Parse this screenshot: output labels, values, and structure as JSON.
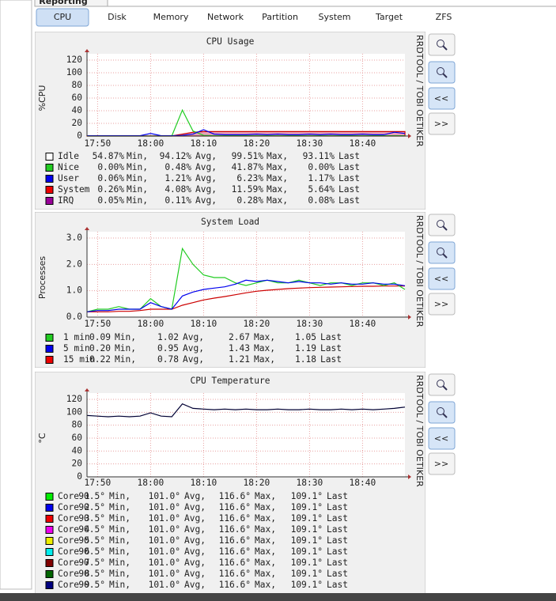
{
  "header_tab": "Reporting",
  "tabs": [
    "CPU",
    "Disk",
    "Memory",
    "Network",
    "Partition",
    "System",
    "Target",
    "ZFS"
  ],
  "selected_tab": 0,
  "graph_buttons": {
    "back": "<<",
    "forward": ">>"
  },
  "side_text": "RRDTOOL / TOBI OETIKER",
  "stat_words": [
    "Min,",
    "Avg,",
    "Max,",
    "Last"
  ],
  "x": [
    1068,
    1070,
    1072,
    1074,
    1076,
    1078,
    1080,
    1082,
    1084,
    1086,
    1088,
    1090,
    1092,
    1094,
    1096,
    1098,
    1100,
    1102,
    1104,
    1106,
    1108,
    1110,
    1112,
    1114,
    1116,
    1118,
    1120,
    1122,
    1124,
    1126,
    1128
  ],
  "xlim": [
    1068,
    1128
  ],
  "xticks": [
    {
      "value": 1070,
      "label": "17:50"
    },
    {
      "value": 1080,
      "label": "18:00"
    },
    {
      "value": 1090,
      "label": "18:10"
    },
    {
      "value": 1100,
      "label": "18:20"
    },
    {
      "value": 1110,
      "label": "18:30"
    },
    {
      "value": 1120,
      "label": "18:40"
    }
  ],
  "graphs": [
    {
      "title": "CPU Usage",
      "ylabel": "%CPU",
      "ylim": [
        0,
        120
      ],
      "yticks": [
        0,
        20,
        40,
        60,
        80,
        100,
        120
      ],
      "series": [
        {
          "color": "#e8a0b8",
          "fill": true,
          "line": "#cc0000",
          "values": [
            0.3,
            0.3,
            0.3,
            0.3,
            0.3,
            0.3,
            0.3,
            0.3,
            0.3,
            3,
            6,
            7,
            7,
            7,
            7,
            7,
            7,
            7,
            7,
            7,
            7,
            7,
            7,
            7,
            7,
            7,
            7,
            7,
            7,
            7,
            7
          ]
        },
        {
          "color": "#22cc22",
          "values": [
            0,
            0,
            0,
            0,
            0,
            0,
            0,
            0,
            0,
            41,
            8,
            1,
            0.5,
            0.5,
            0.5,
            0.5,
            0.5,
            0.5,
            0.5,
            0.5,
            0.5,
            0.5,
            0.5,
            0.5,
            0.5,
            0.5,
            0.5,
            0.5,
            0.5,
            0.5,
            0.5
          ]
        },
        {
          "color": "#0000ee",
          "values": [
            0.5,
            0.5,
            0.5,
            0.5,
            0.5,
            0.5,
            4,
            0.5,
            0.5,
            1,
            3,
            10,
            3,
            2,
            2,
            2,
            3,
            2,
            3,
            2,
            2,
            3,
            2,
            3,
            2,
            2,
            3,
            2,
            2,
            6,
            4
          ]
        }
      ],
      "legend": [
        {
          "name": "Idle",
          "color": "#ffffff",
          "min": "54.87%",
          "avg": "94.12%",
          "max": "99.51%",
          "last": "93.11%"
        },
        {
          "name": "Nice",
          "color": "#22cc22",
          "min": "0.00%",
          "avg": "0.48%",
          "max": "41.87%",
          "last": "0.00%"
        },
        {
          "name": "User",
          "color": "#0000ee",
          "min": "0.06%",
          "avg": "1.21%",
          "max": "6.23%",
          "last": "1.17%"
        },
        {
          "name": "System",
          "color": "#ee0000",
          "min": "0.26%",
          "avg": "4.08%",
          "max": "11.59%",
          "last": "5.64%"
        },
        {
          "name": "IRQ",
          "color": "#990099",
          "min": "0.05%",
          "avg": "0.11%",
          "max": "0.28%",
          "last": "0.08%"
        }
      ]
    },
    {
      "title": "System Load",
      "ylabel": "Processes",
      "ylim": [
        0,
        3
      ],
      "yticks": [
        {
          "value": 0,
          "label": "0.0"
        },
        {
          "value": 1,
          "label": "1.0"
        },
        {
          "value": 2,
          "label": "2.0"
        },
        {
          "value": 3,
          "label": "3.0"
        }
      ],
      "series": [
        {
          "color": "#cc0000",
          "values": [
            0.2,
            0.2,
            0.2,
            0.22,
            0.22,
            0.25,
            0.3,
            0.3,
            0.3,
            0.45,
            0.55,
            0.65,
            0.72,
            0.78,
            0.85,
            0.92,
            0.98,
            1.02,
            1.05,
            1.08,
            1.1,
            1.12,
            1.13,
            1.14,
            1.15,
            1.16,
            1.17,
            1.17,
            1.18,
            1.18,
            1.18
          ]
        },
        {
          "color": "#22cc22",
          "values": [
            0.2,
            0.3,
            0.3,
            0.4,
            0.3,
            0.3,
            0.7,
            0.4,
            0.3,
            2.6,
            2.0,
            1.6,
            1.5,
            1.5,
            1.3,
            1.2,
            1.3,
            1.4,
            1.3,
            1.3,
            1.4,
            1.3,
            1.2,
            1.3,
            1.3,
            1.2,
            1.3,
            1.3,
            1.2,
            1.3,
            1.05
          ]
        },
        {
          "color": "#0000ee",
          "values": [
            0.2,
            0.25,
            0.25,
            0.3,
            0.3,
            0.3,
            0.55,
            0.4,
            0.3,
            0.8,
            0.95,
            1.05,
            1.1,
            1.15,
            1.25,
            1.4,
            1.35,
            1.4,
            1.35,
            1.3,
            1.35,
            1.3,
            1.3,
            1.25,
            1.3,
            1.25,
            1.25,
            1.3,
            1.25,
            1.25,
            1.19
          ]
        }
      ],
      "legend": [
        {
          "name": "1 min",
          "color": "#22cc22",
          "min": "0.09",
          "avg": "1.02",
          "max": "2.67",
          "last": "1.05"
        },
        {
          "name": "5 min",
          "color": "#0000ee",
          "min": "0.20",
          "avg": "0.95",
          "max": "1.43",
          "last": "1.19"
        },
        {
          "name": "15 min",
          "color": "#ee0000",
          "min": "0.22",
          "avg": "0.78",
          "max": "1.21",
          "last": "1.18"
        }
      ]
    },
    {
      "title": "CPU Temperature",
      "ylabel": "°C",
      "ylim": [
        0,
        120
      ],
      "yticks": [
        0,
        20,
        40,
        60,
        80,
        100,
        120
      ],
      "series": [
        {
          "color": "#000033",
          "values": [
            95,
            94,
            93,
            94,
            93,
            94,
            99,
            94,
            93,
            113,
            106,
            105,
            104,
            105,
            104,
            105,
            104,
            104,
            105,
            104,
            104,
            105,
            104,
            104,
            105,
            104,
            105,
            104,
            105,
            106,
            108
          ]
        }
      ],
      "legend": [
        {
          "name": "Core 1",
          "color": "#00ee00",
          "min": "90.5°",
          "avg": "101.0°",
          "max": "116.6°",
          "last": "109.1°"
        },
        {
          "name": "Core 2",
          "color": "#0000ee",
          "min": "90.5°",
          "avg": "101.0°",
          "max": "116.6°",
          "last": "109.1°"
        },
        {
          "name": "Core 3",
          "color": "#ee0000",
          "min": "90.5°",
          "avg": "101.0°",
          "max": "116.6°",
          "last": "109.1°"
        },
        {
          "name": "Core 4",
          "color": "#ee00ee",
          "min": "90.5°",
          "avg": "101.0°",
          "max": "116.6°",
          "last": "109.1°"
        },
        {
          "name": "Core 5",
          "color": "#eeee00",
          "min": "90.5°",
          "avg": "101.0°",
          "max": "116.6°",
          "last": "109.1°"
        },
        {
          "name": "Core 6",
          "color": "#00eeee",
          "min": "90.5°",
          "avg": "101.0°",
          "max": "116.6°",
          "last": "109.1°"
        },
        {
          "name": "Core 7",
          "color": "#800000",
          "min": "90.5°",
          "avg": "101.0°",
          "max": "116.6°",
          "last": "109.1°"
        },
        {
          "name": "Core 8",
          "color": "#006400",
          "min": "90.5°",
          "avg": "101.0°",
          "max": "116.6°",
          "last": "109.1°"
        },
        {
          "name": "Core 9",
          "color": "#000080",
          "min": "90.5°",
          "avg": "101.0°",
          "max": "116.6°",
          "last": "109.1°"
        }
      ]
    }
  ]
}
